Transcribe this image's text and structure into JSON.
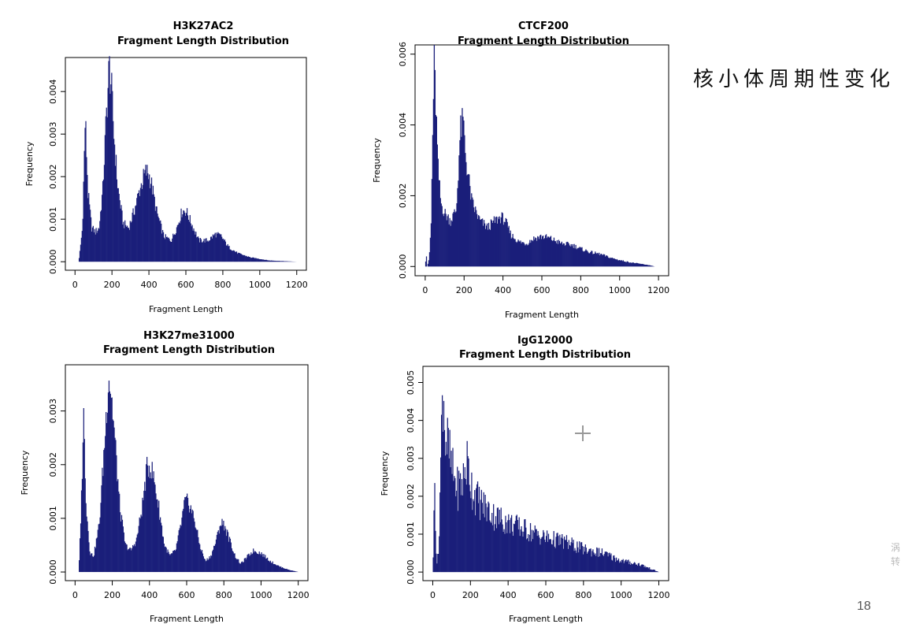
{
  "side_title": "核小体周期性变化",
  "page_number": "18",
  "watermark": [
    "涡",
    "转"
  ],
  "colors": {
    "bars": "#1a1f7a",
    "axis": "#000000"
  },
  "chart_data": [
    {
      "type": "bar",
      "title": "H3K27AC2",
      "subtitle": "Fragment Length Distribution",
      "xlabel": "Fragment Length",
      "ylabel": "Frequency",
      "xlim": [
        0,
        1200
      ],
      "ylim": [
        0,
        0.0046
      ],
      "xticks": [
        "0",
        "200",
        "400",
        "600",
        "800",
        "1000",
        "1200"
      ],
      "yticks": [
        "0.000",
        "0.001",
        "0.002",
        "0.003",
        "0.004"
      ],
      "x": [
        0,
        20,
        40,
        55,
        70,
        90,
        110,
        130,
        150,
        170,
        185,
        195,
        210,
        230,
        260,
        290,
        320,
        350,
        380,
        395,
        410,
        440,
        480,
        520,
        550,
        580,
        600,
        630,
        670,
        720,
        760,
        790,
        830,
        880,
        950,
        1050,
        1150,
        1200
      ],
      "values": [
        0,
        0,
        0.0008,
        0.0034,
        0.0016,
        0.0008,
        0.0007,
        0.0008,
        0.0017,
        0.0035,
        0.0046,
        0.0042,
        0.003,
        0.0018,
        0.0009,
        0.0008,
        0.0012,
        0.0017,
        0.0021,
        0.0021,
        0.0019,
        0.0012,
        0.0006,
        0.0005,
        0.0008,
        0.0012,
        0.0012,
        0.0009,
        0.0005,
        0.0005,
        0.00065,
        0.0006,
        0.00035,
        0.0002,
        0.0001,
        3e-05,
        1e-05,
        0
      ]
    },
    {
      "type": "bar",
      "title": "CTCF200",
      "subtitle": "Fragment Length Distribution",
      "xlabel": "Fragment Length",
      "ylabel": "Frequency",
      "xlim": [
        0,
        1200
      ],
      "ylim": [
        0,
        0.006
      ],
      "xticks": [
        "0",
        "200",
        "400",
        "600",
        "800",
        "1000",
        "1200"
      ],
      "yticks": [
        "0.000",
        "0.002",
        "0.004",
        "0.006"
      ],
      "x": [
        0,
        5,
        10,
        20,
        30,
        45,
        55,
        65,
        80,
        100,
        130,
        160,
        180,
        195,
        210,
        240,
        280,
        320,
        360,
        390,
        410,
        440,
        480,
        520,
        560,
        600,
        640,
        700,
        760,
        800,
        850,
        900,
        950,
        1000,
        1050,
        1100,
        1150,
        1180
      ],
      "values": [
        0,
        0.0004,
        0,
        0.0002,
        0.0012,
        0.0058,
        0.0045,
        0.0028,
        0.0018,
        0.0015,
        0.0013,
        0.0016,
        0.0038,
        0.0041,
        0.003,
        0.0018,
        0.0013,
        0.0011,
        0.0013,
        0.0014,
        0.0013,
        0.0009,
        0.0007,
        0.00065,
        0.0008,
        0.00085,
        0.0008,
        0.00065,
        0.0006,
        0.0005,
        0.0004,
        0.00035,
        0.00025,
        0.00018,
        0.00012,
        8e-05,
        4e-05,
        0
      ]
    },
    {
      "type": "bar",
      "title": "H3K27me31000",
      "subtitle": "Fragment Length Distribution",
      "xlabel": "Fragment Length",
      "ylabel": "Frequency",
      "xlim": [
        0,
        1200
      ],
      "ylim": [
        0,
        0.0037
      ],
      "xticks": [
        "0",
        "200",
        "400",
        "600",
        "800",
        "1000",
        "1200"
      ],
      "yticks": [
        "0.000",
        "0.001",
        "0.002",
        "0.003"
      ],
      "x": [
        0,
        20,
        35,
        45,
        60,
        80,
        100,
        130,
        160,
        180,
        195,
        215,
        240,
        270,
        300,
        330,
        360,
        385,
        400,
        420,
        450,
        480,
        510,
        540,
        570,
        590,
        610,
        640,
        670,
        700,
        730,
        760,
        780,
        800,
        830,
        860,
        890,
        930,
        960,
        1000,
        1050,
        1100,
        1150,
        1200
      ],
      "values": [
        0,
        0,
        0.0015,
        0.003,
        0.0012,
        0.00035,
        0.0003,
        0.0009,
        0.0025,
        0.0037,
        0.0033,
        0.0024,
        0.0012,
        0.0005,
        0.0004,
        0.0006,
        0.0012,
        0.0019,
        0.002,
        0.0018,
        0.0012,
        0.0005,
        0.0003,
        0.0004,
        0.0009,
        0.0013,
        0.0013,
        0.001,
        0.0005,
        0.0002,
        0.0003,
        0.0006,
        0.0009,
        0.0009,
        0.0006,
        0.0003,
        0.00015,
        0.0003,
        0.0004,
        0.00035,
        0.0002,
        0.0001,
        4e-05,
        0
      ]
    },
    {
      "type": "bar",
      "title": "IgG12000",
      "subtitle": "Fragment Length Distribution",
      "xlabel": "Fragment Length",
      "ylabel": "Frequency",
      "xlim": [
        0,
        1200
      ],
      "ylim": [
        0,
        0.0052
      ],
      "xticks": [
        "0",
        "200",
        "400",
        "600",
        "800",
        "1000",
        "1200"
      ],
      "yticks": [
        "0.000",
        "0.001",
        "0.002",
        "0.003",
        "0.004",
        "0.005"
      ],
      "x": [
        0,
        10,
        20,
        30,
        45,
        55,
        65,
        80,
        100,
        130,
        160,
        180,
        195,
        210,
        240,
        280,
        320,
        360,
        400,
        450,
        500,
        550,
        600,
        650,
        700,
        750,
        800,
        850,
        900,
        950,
        1000,
        1050,
        1100,
        1150,
        1200
      ],
      "values": [
        0,
        0.0023,
        0.0002,
        0.0005,
        0.0035,
        0.0052,
        0.0036,
        0.0033,
        0.0027,
        0.0022,
        0.0024,
        0.0029,
        0.0026,
        0.0022,
        0.0019,
        0.0017,
        0.0015,
        0.0014,
        0.0013,
        0.0012,
        0.0011,
        0.001,
        0.0009,
        0.00085,
        0.0008,
        0.0007,
        0.0006,
        0.00055,
        0.0005,
        0.0004,
        0.0003,
        0.00025,
        0.0002,
        0.0001,
        0
      ]
    }
  ]
}
